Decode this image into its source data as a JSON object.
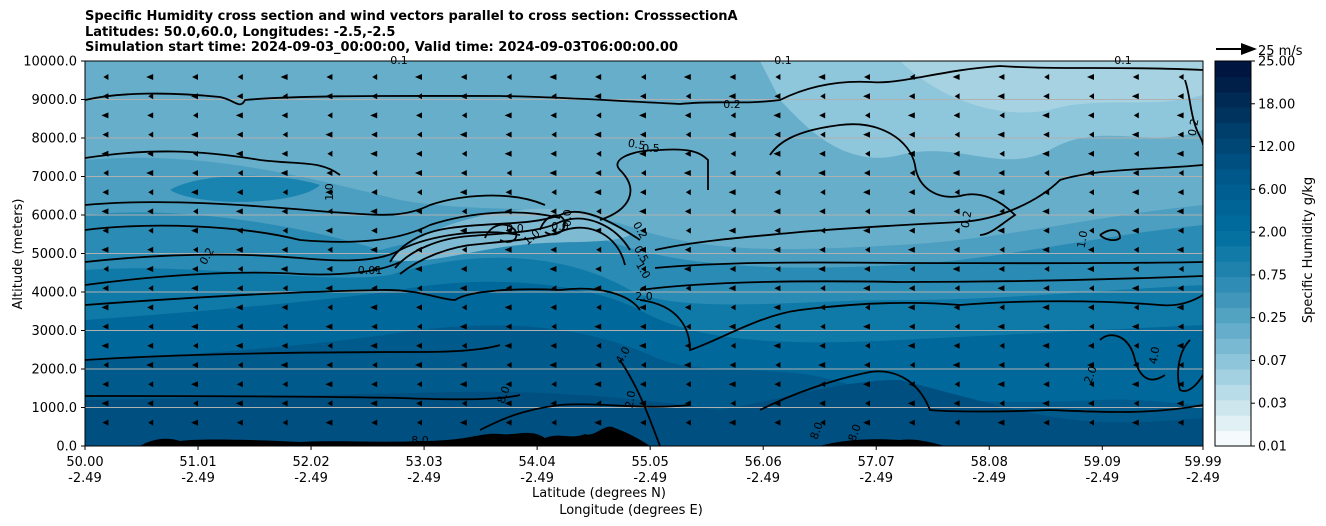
{
  "title": {
    "line1": "Specific Humidity cross section and wind vectors parallel to cross section: CrosssectionA",
    "line2": "Latitudes: 50.0,60.0, Longitudes: -2.5,-2.5",
    "line3": "Simulation start time: 2024-09-03_00:00:00, Valid time: 2024-09-03T06:00:00.00"
  },
  "chart_data": {
    "type": "contourf",
    "ylabel": "Altitude (meters)",
    "xlabel_line1": "Latitude (degrees N)",
    "xlabel_line2": "Longitude (degrees E)",
    "ylim": [
      0,
      10000
    ],
    "xlim": [
      50.0,
      59.99
    ],
    "y_ticks": [
      {
        "value": 0,
        "label": "0.0"
      },
      {
        "value": 1000,
        "label": "1000.0"
      },
      {
        "value": 2000,
        "label": "2000.0"
      },
      {
        "value": 3000,
        "label": "3000.0"
      },
      {
        "value": 4000,
        "label": "4000.0"
      },
      {
        "value": 5000,
        "label": "5000.0"
      },
      {
        "value": 6000,
        "label": "6000.0"
      },
      {
        "value": 7000,
        "label": "7000.0"
      },
      {
        "value": 8000,
        "label": "8000.0"
      },
      {
        "value": 9000,
        "label": "9000.0"
      },
      {
        "value": 10000,
        "label": "10000.0"
      }
    ],
    "x_ticks": [
      {
        "value": 50.0,
        "lat": "50.00",
        "lon": "-2.49"
      },
      {
        "value": 51.01,
        "lat": "51.01",
        "lon": "-2.49"
      },
      {
        "value": 52.02,
        "lat": "52.02",
        "lon": "-2.49"
      },
      {
        "value": 53.03,
        "lat": "53.03",
        "lon": "-2.49"
      },
      {
        "value": 54.04,
        "lat": "54.04",
        "lon": "-2.49"
      },
      {
        "value": 55.05,
        "lat": "55.05",
        "lon": "-2.49"
      },
      {
        "value": 56.06,
        "lat": "56.06",
        "lon": "-2.49"
      },
      {
        "value": 57.07,
        "lat": "57.07",
        "lon": "-2.49"
      },
      {
        "value": 58.08,
        "lat": "58.08",
        "lon": "-2.49"
      },
      {
        "value": 59.09,
        "lat": "59.09",
        "lon": "-2.49"
      },
      {
        "value": 59.99,
        "lat": "59.99",
        "lon": "-2.49"
      }
    ],
    "colorbar": {
      "label": "Specific Humidity g/kg",
      "tick_labels": [
        "0.01",
        "0.03",
        "0.07",
        "0.25",
        "0.75",
        "2.00",
        "6.00",
        "12.00",
        "18.00",
        "25.00"
      ],
      "colors": [
        "#f5fbfd",
        "#e1f0f4",
        "#cde6ee",
        "#b8dce8",
        "#a3d1e1",
        "#8ec5da",
        "#79b9d2",
        "#65adca",
        "#52a2c2",
        "#4097bb",
        "#2f8cb4",
        "#1f82ad",
        "#117aa7",
        "#0571a1",
        "#006a9d",
        "#006496",
        "#005e90",
        "#005789",
        "#004f81",
        "#004776",
        "#003e6b",
        "#00345f",
        "#002a53",
        "#001f48",
        "#00153f"
      ]
    },
    "quiver_key": {
      "label": "25 m/s"
    },
    "contour_labels": [
      "0.1",
      "0.1",
      "0.1",
      "0.2",
      "0.2",
      "0.2",
      "0.2",
      "0.5",
      "0.5",
      "0.5",
      "0.2",
      "1.0",
      "1.0",
      "1.0",
      "1.0",
      "0.0",
      "0.0",
      "0.0",
      "0.01",
      "2.0",
      "2.0",
      "2.0",
      "4.0",
      "4.0",
      "8.0",
      "8.0",
      "8.0",
      "8.0"
    ]
  }
}
